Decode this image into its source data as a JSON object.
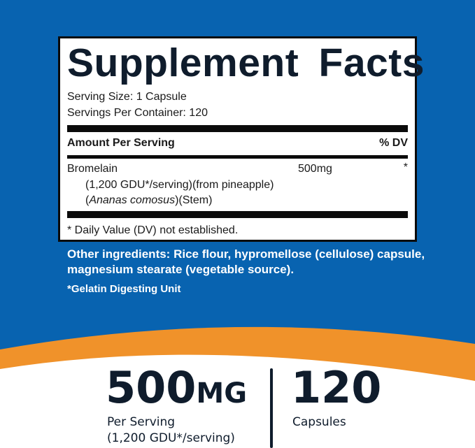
{
  "colors": {
    "background_blue": "#0863b0",
    "orange": "#f0922a",
    "text_dark": "#0f1c2c"
  },
  "facts": {
    "title": "Supplement Facts",
    "serving_size": "Serving Size: 1 Capsule",
    "servings_per_container": "Servings Per Container: 120",
    "amount_header": "Amount Per Serving",
    "dv_header": "% DV",
    "ingredient": {
      "name": "Bromelain",
      "detail1": "(1,200 GDU*/serving)(from pineapple)",
      "detail2_italic": "Ananas comosus",
      "detail2_rest": "(Stem)",
      "amount": "500mg",
      "dv": "*"
    },
    "footnote": "* Daily Value (DV) not established."
  },
  "other_ingredients": {
    "line1": "Other ingredients: Rice flour, hypromellose (cellulose) capsule,",
    "line2": "magnesium stearate (vegetable source).",
    "note": "*Gelatin Digesting Unit"
  },
  "highlights": {
    "dose_value": "500",
    "dose_unit": "MG",
    "dose_label1": "Per Serving",
    "dose_label2": "(1,200 GDU*/serving)",
    "count_value": "120",
    "count_label": "Capsules"
  }
}
